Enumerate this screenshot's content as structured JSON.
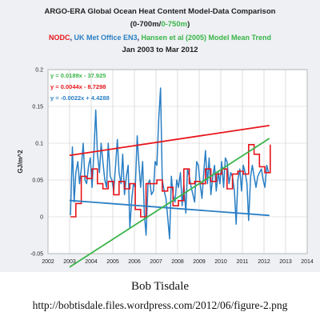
{
  "header": {
    "title_line1": "ARGO-ERA Global Ocean Heat Content Model-Data Comparison",
    "title_line2_a": "(0-700m/",
    "title_line2_b": "0-750m",
    "title_line2_c": ")",
    "title_line3_a": "NODC",
    "title_line3_sep1": ", ",
    "title_line3_b": "UK Met Office EN3",
    "title_line3_sep2": ", ",
    "title_line3_c": "Hansen et al (2005) Model Mean Trend",
    "title_line4": "Jan 2003 to Mar 2012"
  },
  "colors": {
    "nodc": "#e8151b",
    "en3": "#2a7fc4",
    "model": "#3ab54a",
    "navy": "#1c2f6b"
  },
  "chart_data": {
    "type": "line",
    "ylabel": "GJ/m^2",
    "xlim": [
      2002,
      2014
    ],
    "ylim": [
      -0.05,
      0.2
    ],
    "x_ticks": [
      "2002",
      "2003",
      "2004",
      "2005",
      "2006",
      "2007",
      "2008",
      "2009",
      "2010",
      "2011",
      "2012",
      "2013",
      "2014"
    ],
    "y_ticks": [
      "-0.05",
      "0",
      "0.05",
      "0.1",
      "0.15",
      "0.2"
    ],
    "grid": true,
    "annotations": [
      {
        "text": "y = 0.0189x - 37.925",
        "series": "Hansen et al (2005) Model Mean Trend"
      },
      {
        "text": "y = 0.0044x - 8.7298",
        "series": "NODC"
      },
      {
        "text": "y = -0.0022x + 4.4288",
        "series": "UK Met Office EN3"
      }
    ],
    "series": [
      {
        "name": "UK Met Office EN3",
        "x": [
          2003.04,
          2003.13,
          2003.21,
          2003.29,
          2003.38,
          2003.46,
          2003.54,
          2003.63,
          2003.71,
          2003.79,
          2003.88,
          2003.96,
          2004.04,
          2004.13,
          2004.21,
          2004.29,
          2004.38,
          2004.46,
          2004.54,
          2004.63,
          2004.71,
          2004.79,
          2004.88,
          2004.96,
          2005.04,
          2005.13,
          2005.21,
          2005.29,
          2005.38,
          2005.46,
          2005.54,
          2005.63,
          2005.71,
          2005.79,
          2005.88,
          2005.96,
          2006.04,
          2006.13,
          2006.21,
          2006.29,
          2006.38,
          2006.46,
          2006.54,
          2006.63,
          2006.71,
          2006.79,
          2006.88,
          2006.96,
          2007.04,
          2007.13,
          2007.21,
          2007.29,
          2007.38,
          2007.46,
          2007.54,
          2007.63,
          2007.71,
          2007.79,
          2007.88,
          2007.96,
          2008.04,
          2008.13,
          2008.21,
          2008.29,
          2008.38,
          2008.46,
          2008.54,
          2008.63,
          2008.71,
          2008.79,
          2008.88,
          2008.96,
          2009.04,
          2009.13,
          2009.21,
          2009.29,
          2009.38,
          2009.46,
          2009.54,
          2009.63,
          2009.71,
          2009.79,
          2009.88,
          2009.96,
          2010.04,
          2010.13,
          2010.21,
          2010.29,
          2010.38,
          2010.46,
          2010.54,
          2010.63,
          2010.71,
          2010.79,
          2010.88,
          2010.96,
          2011.04,
          2011.13,
          2011.21,
          2011.29,
          2011.38,
          2011.46,
          2011.54,
          2011.63,
          2011.71,
          2011.79,
          2011.88,
          2011.96,
          2012.04,
          2012.13,
          2012.21
        ],
        "y": [
          0.002,
          0.095,
          0.02,
          0.06,
          0.075,
          0.045,
          0.065,
          0.1,
          0.05,
          0.045,
          0.07,
          0.08,
          0.04,
          0.09,
          0.145,
          0.085,
          0.06,
          0.1,
          0.075,
          0.05,
          0.04,
          0.1,
          0.055,
          0.05,
          0.035,
          0.07,
          0.105,
          0.06,
          0.045,
          0.085,
          0.03,
          0.055,
          0.07,
          -0.015,
          0.025,
          0.045,
          0.04,
          0.11,
          0.07,
          0.04,
          0.075,
          0.005,
          -0.025,
          0.045,
          0.05,
          0.03,
          0.035,
          0.075,
          0.07,
          0.135,
          0.175,
          0.05,
          0.035,
          0.025,
          0.0,
          -0.03,
          0.055,
          0.03,
          0.02,
          0.05,
          0.04,
          0.06,
          0.015,
          0.045,
          0.005,
          0.065,
          0.055,
          0.04,
          0.03,
          0.02,
          0.075,
          0.07,
          0.045,
          0.025,
          0.06,
          0.09,
          0.045,
          0.08,
          0.03,
          0.055,
          0.07,
          0.035,
          0.06,
          0.045,
          0.075,
          0.04,
          0.08,
          0.075,
          0.045,
          0.06,
          0.055,
          0.035,
          -0.01,
          0.05,
          0.065,
          0.035,
          0.07,
          0.06,
          0.045,
          -0.005,
          0.055,
          0.07,
          0.055,
          0.04,
          0.055,
          0.06,
          0.065,
          0.05,
          0.04,
          0.07,
          0.06
        ],
        "trend": {
          "slope": -0.0022,
          "intercept": 4.4288
        }
      },
      {
        "name": "NODC",
        "x": [
          2003.04,
          2003.29,
          2003.54,
          2003.79,
          2004.04,
          2004.29,
          2004.54,
          2004.79,
          2005.04,
          2005.29,
          2005.54,
          2005.79,
          2006.04,
          2006.29,
          2006.54,
          2006.79,
          2007.04,
          2007.29,
          2007.54,
          2007.79,
          2008.04,
          2008.29,
          2008.54,
          2008.79,
          2009.04,
          2009.29,
          2009.54,
          2009.79,
          2010.04,
          2010.29,
          2010.54,
          2010.79,
          2011.04,
          2011.29,
          2011.54,
          2011.79,
          2012.04,
          2012.29
        ],
        "y": [
          0.0,
          0.018,
          0.055,
          0.052,
          0.065,
          0.045,
          0.038,
          0.048,
          0.03,
          0.048,
          0.038,
          0.045,
          0.01,
          0.0,
          0.045,
          0.045,
          0.05,
          0.035,
          0.04,
          0.015,
          0.022,
          0.065,
          0.045,
          0.048,
          0.045,
          0.065,
          0.048,
          0.058,
          0.065,
          0.038,
          0.058,
          0.062,
          0.058,
          0.098,
          0.085,
          0.068,
          0.06,
          0.098
        ],
        "trend": {
          "slope": 0.0044,
          "intercept": -8.7298
        }
      },
      {
        "name": "Hansen et al (2005) Model Mean Trend",
        "trend": {
          "slope": 0.0189,
          "intercept": -37.925
        }
      }
    ]
  },
  "footer": {
    "author": "Bob Tisdale",
    "url": "http://bobtisdale.files.wordpress.com/2012/06/figure-2.png"
  }
}
